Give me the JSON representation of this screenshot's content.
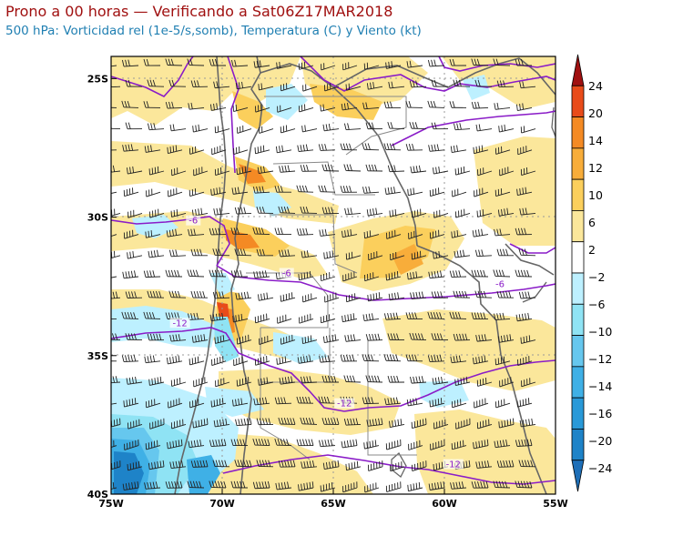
{
  "header": {
    "title": "Prono a 00 horas — Verificando a Sat06Z17MAR2018",
    "subtitle": "500 hPa: Vorticidad rel (1e-5/s,somb), Temperatura (C) y Viento (kt)"
  },
  "map": {
    "lon_range": [
      -75,
      -55
    ],
    "lat_range": [
      -40,
      -24.2
    ],
    "x_ticks": [
      {
        "lon": -75,
        "label": "75W"
      },
      {
        "lon": -70,
        "label": "70W"
      },
      {
        "lon": -65,
        "label": "65W"
      },
      {
        "lon": -60,
        "label": "60W"
      },
      {
        "lon": -55,
        "label": "55W"
      }
    ],
    "y_ticks": [
      {
        "lat": -25,
        "label": "25S"
      },
      {
        "lat": -30,
        "label": "30S"
      },
      {
        "lat": -35,
        "label": "35S"
      },
      {
        "lat": -40,
        "label": "40S"
      }
    ],
    "temperature_labels": [
      {
        "lon": -71.3,
        "lat": -30.2,
        "text": "-6"
      },
      {
        "lon": -67.1,
        "lat": -32.1,
        "text": "-6"
      },
      {
        "lon": -57.5,
        "lat": -32.5,
        "text": "-6"
      },
      {
        "lon": -71.9,
        "lat": -33.9,
        "text": "-12"
      },
      {
        "lon": -64.5,
        "lat": -36.8,
        "text": "-12"
      },
      {
        "lon": -59.6,
        "lat": -39.0,
        "text": "-12"
      }
    ]
  },
  "colorbar": {
    "labels": [
      "24",
      "20",
      "14",
      "12",
      "10",
      "6",
      "2",
      "−2",
      "−6",
      "−10",
      "−12",
      "−14",
      "−16",
      "−20",
      "−24"
    ],
    "colors": [
      "#a01010",
      "#e84b1a",
      "#f48a24",
      "#f8ad3a",
      "#fbcf5c",
      "#fbe79b",
      "#ffffff",
      "#bdf0ff",
      "#8fe3f4",
      "#66c7ee",
      "#3fb0e6",
      "#2999d8",
      "#1e83c8",
      "#1e6fb8"
    ]
  },
  "legend_level": "500 hPa"
}
